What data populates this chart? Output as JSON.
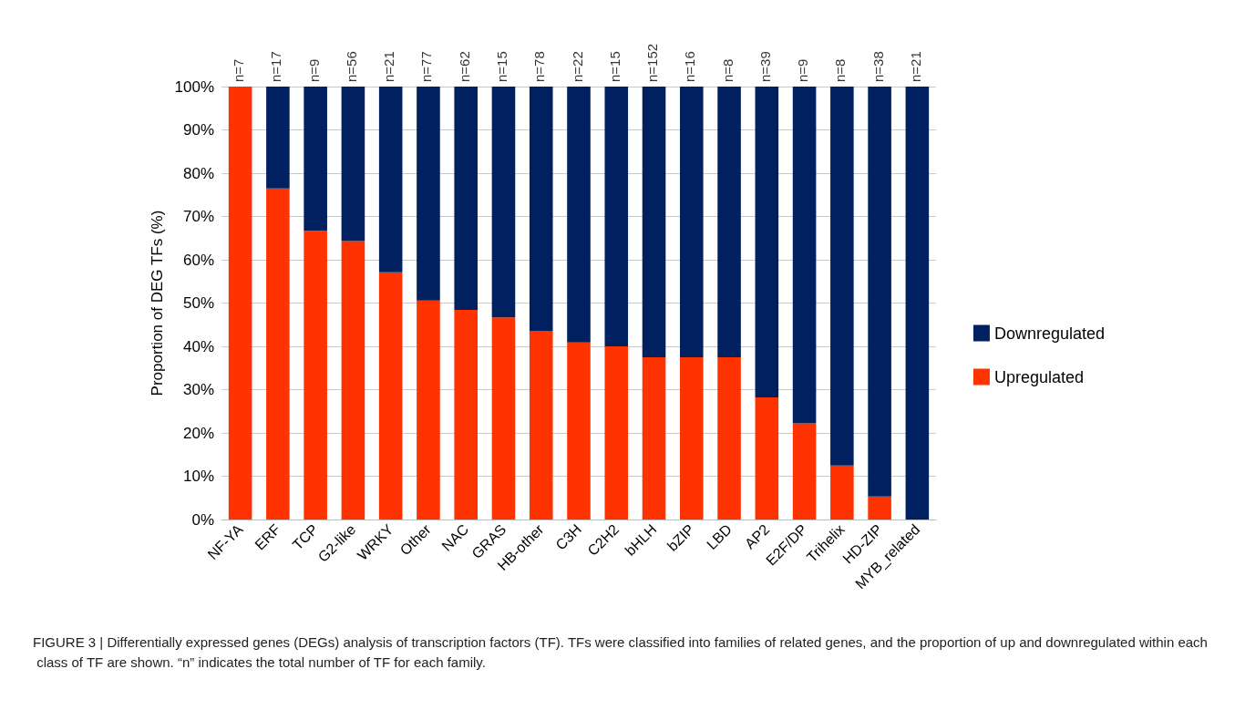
{
  "chart_data": {
    "type": "bar",
    "stacked": true,
    "ylabel": "Proportion of DEG TFs (%)",
    "categories": [
      "NF-YA",
      "ERF",
      "TCP",
      "G2-like",
      "WRKY",
      "Other",
      "NAC",
      "GRAS",
      "HB-other",
      "C3H",
      "C2H2",
      "bHLH",
      "bZIP",
      "LBD",
      "AP2",
      "E2F/DP",
      "Trihelix",
      "HD-ZIP",
      "MYB_related"
    ],
    "series": [
      {
        "name": "Upregulated",
        "color": "#ff3300",
        "values": [
          100,
          76.5,
          66.7,
          64.3,
          57.1,
          50.6,
          48.4,
          46.7,
          43.6,
          40.9,
          40,
          37.5,
          37.5,
          37.5,
          28.2,
          22.2,
          12.5,
          5.3,
          0
        ]
      },
      {
        "name": "Downregulated",
        "color": "#002060",
        "values": [
          0,
          23.5,
          33.3,
          35.7,
          42.9,
          49.4,
          51.6,
          53.3,
          56.4,
          59.1,
          60,
          62.5,
          62.5,
          62.5,
          71.8,
          77.8,
          87.5,
          94.7,
          100
        ]
      }
    ],
    "ylim": [
      0,
      100
    ],
    "yticks": [
      {
        "value": 0,
        "label": "0%"
      },
      {
        "value": 10,
        "label": "10%"
      },
      {
        "value": 20,
        "label": "20%"
      },
      {
        "value": 30,
        "label": "30%"
      },
      {
        "value": 40,
        "label": "40%"
      },
      {
        "value": 50,
        "label": "50%"
      },
      {
        "value": 60,
        "label": "60%"
      },
      {
        "value": 70,
        "label": "70%"
      },
      {
        "value": 80,
        "label": "80%"
      },
      {
        "value": 90,
        "label": "90%"
      },
      {
        "value": 100,
        "label": "100%"
      }
    ],
    "grid": "y",
    "legend": "right",
    "annotations": [
      {
        "text": "n=7",
        "x": "NF-YA",
        "y": 100
      },
      {
        "text": "n=17",
        "x": "ERF",
        "y": 100
      },
      {
        "text": "n=9",
        "x": "TCP",
        "y": 100
      },
      {
        "text": "n=56",
        "x": "G2-like",
        "y": 100
      },
      {
        "text": "n=21",
        "x": "WRKY",
        "y": 100
      },
      {
        "text": "n=77",
        "x": "Other",
        "y": 100
      },
      {
        "text": "n=62",
        "x": "NAC",
        "y": 100
      },
      {
        "text": "n=15",
        "x": "GRAS",
        "y": 100
      },
      {
        "text": "n=78",
        "x": "HB-other",
        "y": 100
      },
      {
        "text": "n=22",
        "x": "C3H",
        "y": 100
      },
      {
        "text": "n=15",
        "x": "C2H2",
        "y": 100
      },
      {
        "text": "n=152",
        "x": "bHLH",
        "y": 100
      },
      {
        "text": "n=16",
        "x": "bZIP",
        "y": 100
      },
      {
        "text": "n=8",
        "x": "LBD",
        "y": 100
      },
      {
        "text": "n=39",
        "x": "AP2",
        "y": 100
      },
      {
        "text": "n=9",
        "x": "E2F/DP",
        "y": 100
      },
      {
        "text": "n=8",
        "x": "Trihelix",
        "y": 100
      },
      {
        "text": "n=38",
        "x": "HD-ZIP",
        "y": 100
      },
      {
        "text": "n=21",
        "x": "MYB_related",
        "y": 100
      },
      "FIGURE 3 | Differentially expressed genes (DEGs) analysis of transcription factors (TF). TFs were classified into families of related genes, and the proportion of up and downregulated within each class of TF are shown. “n” indicates the total number of TF for each family."
    ]
  }
}
